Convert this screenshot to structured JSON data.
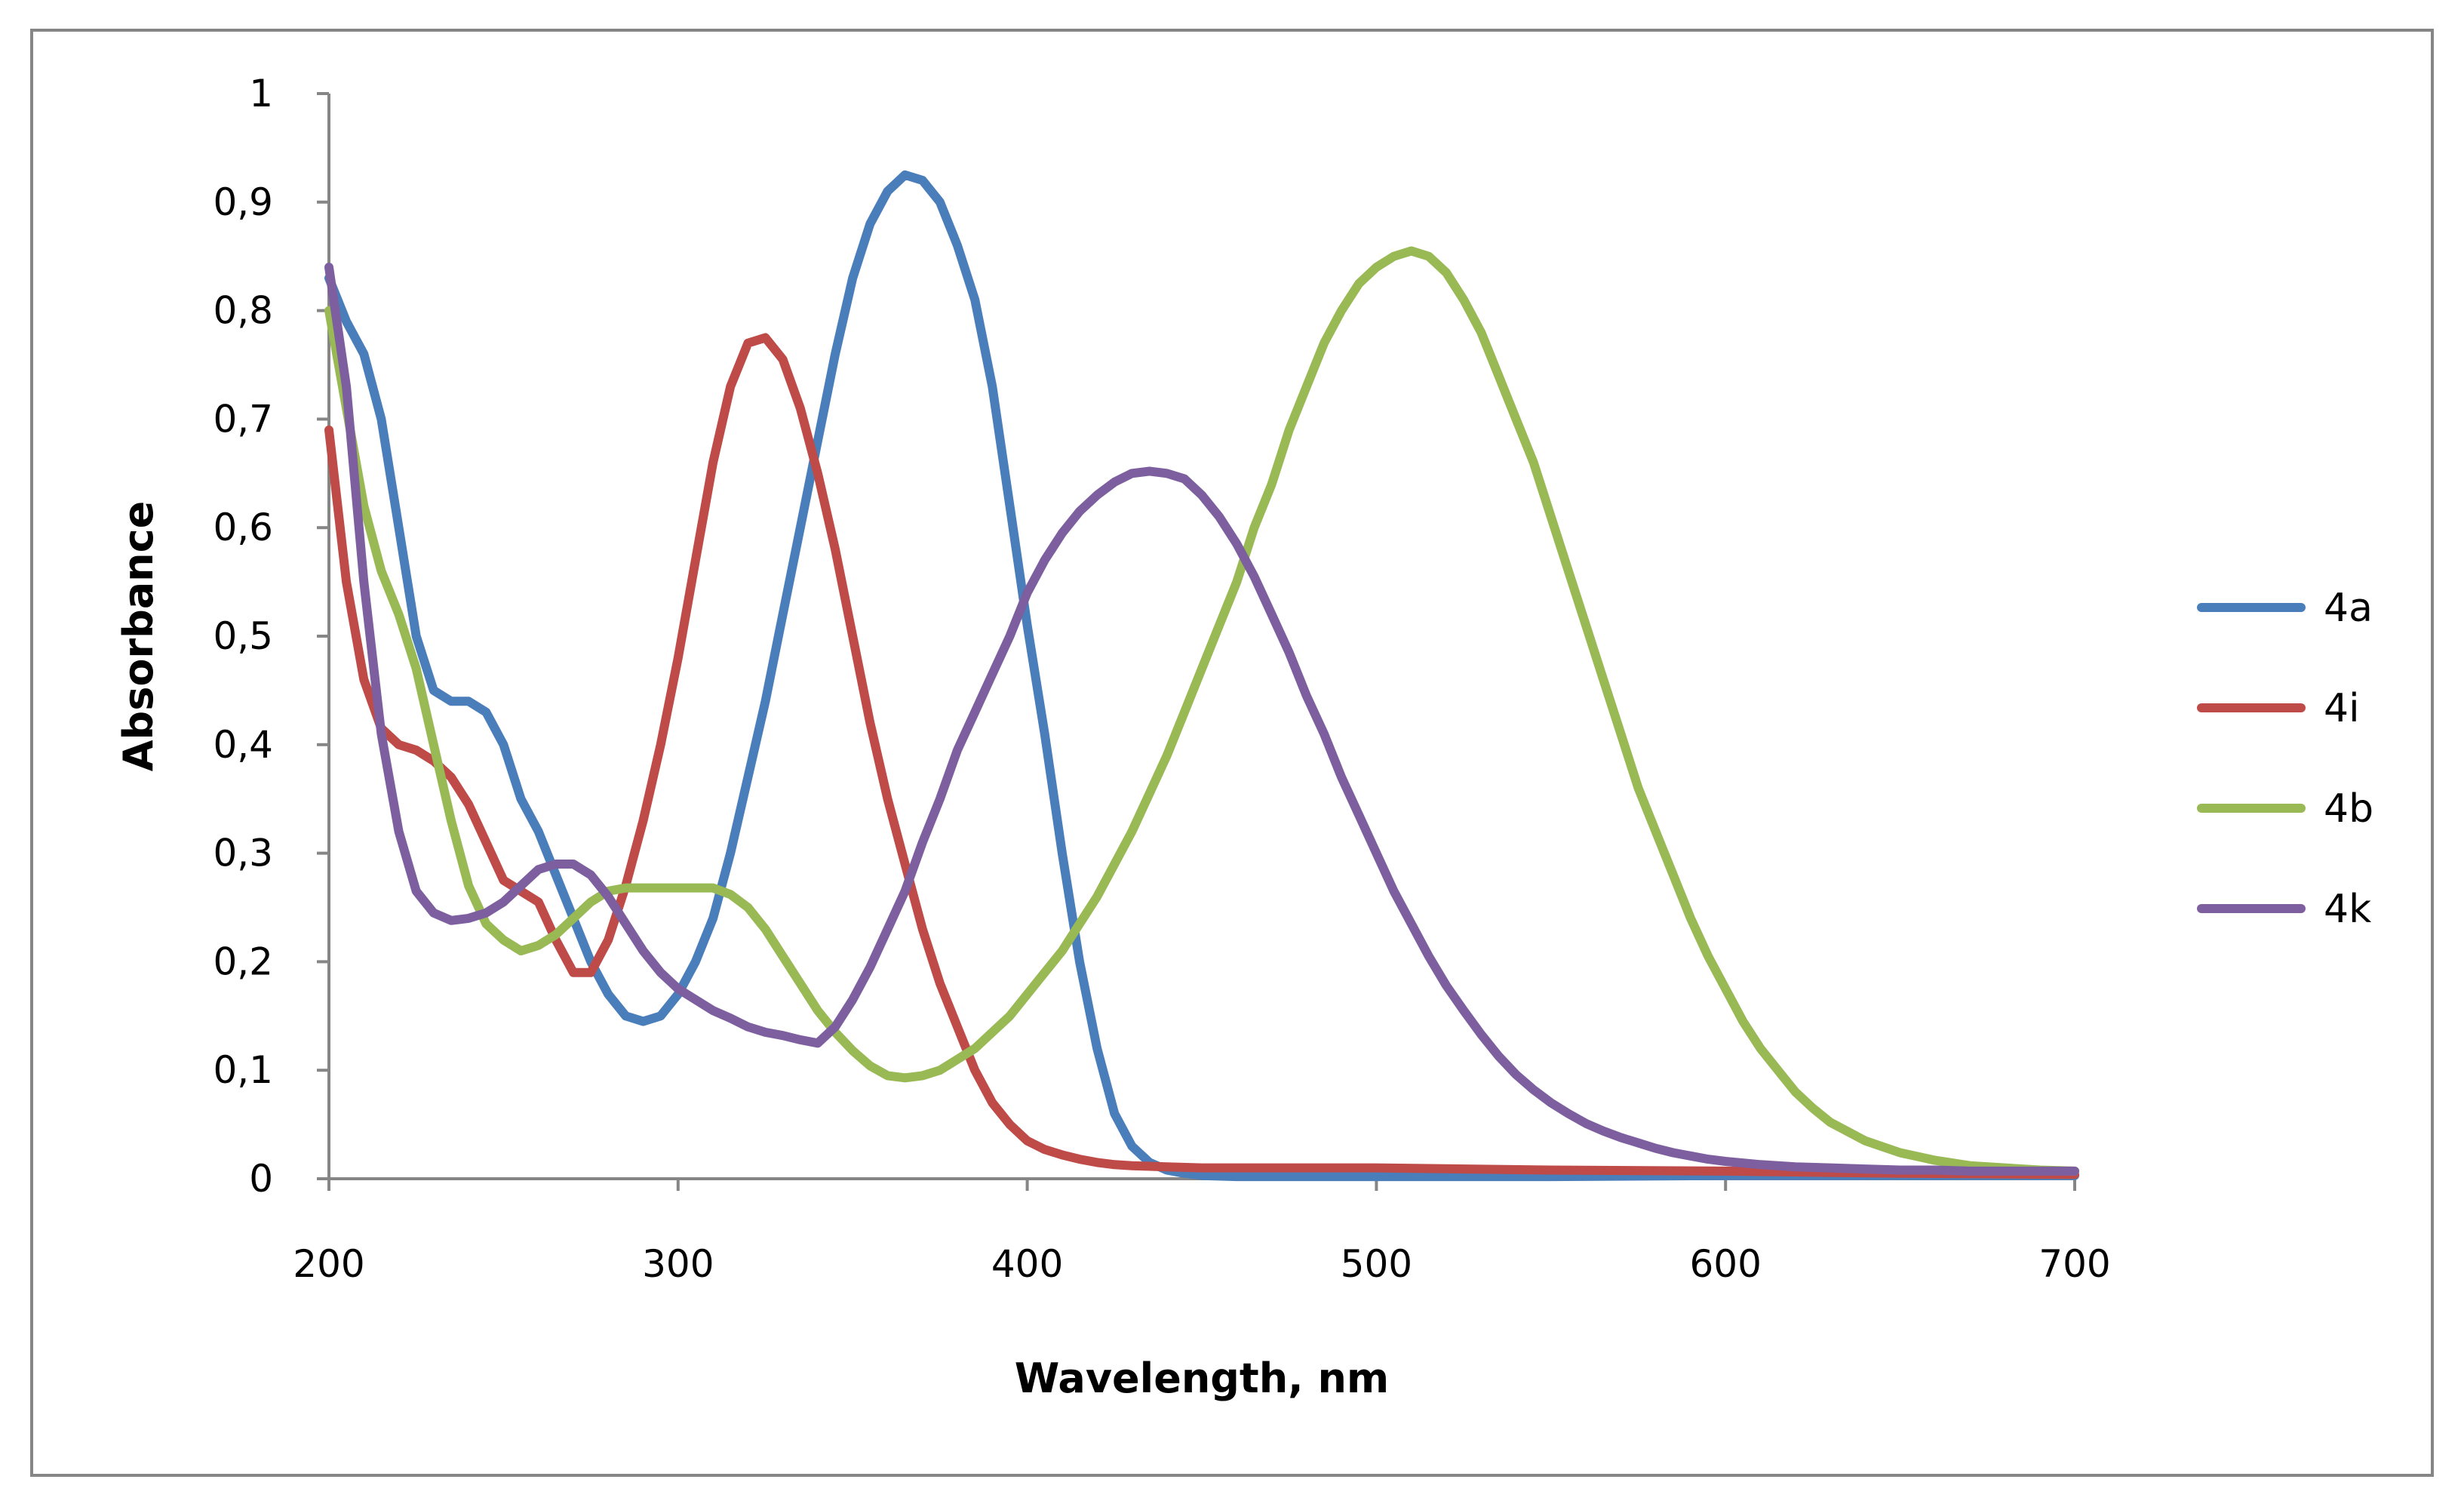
{
  "chart_data": {
    "type": "line",
    "title": "",
    "xlabel": "Wavelength, nm",
    "ylabel": "Absorbance",
    "xlim": [
      200,
      700
    ],
    "ylim": [
      0,
      1
    ],
    "xticks": [
      200,
      300,
      400,
      500,
      600,
      700
    ],
    "xtick_labels": [
      "200",
      "300",
      "400",
      "500",
      "600",
      "700"
    ],
    "yticks": [
      0,
      0.1,
      0.2,
      0.3,
      0.4,
      0.5,
      0.6,
      0.7,
      0.8,
      0.9,
      1
    ],
    "ytick_labels": [
      "0",
      "0,1",
      "0,2",
      "0,3",
      "0,4",
      "0,5",
      "0,6",
      "0,7",
      "0,8",
      "0,9",
      "1"
    ],
    "grid": false,
    "legend_position": "right",
    "series": [
      {
        "name": "4a",
        "color": "#4a7ebb",
        "x": [
          200,
          205,
          210,
          215,
          220,
          225,
          230,
          235,
          240,
          245,
          250,
          255,
          260,
          265,
          270,
          275,
          280,
          285,
          290,
          295,
          300,
          305,
          310,
          315,
          320,
          325,
          330,
          335,
          340,
          345,
          350,
          355,
          360,
          365,
          370,
          375,
          380,
          385,
          390,
          395,
          400,
          405,
          410,
          415,
          420,
          425,
          430,
          435,
          440,
          445,
          450,
          460,
          480,
          500,
          550,
          600,
          650,
          700
        ],
        "y": [
          0.83,
          0.79,
          0.76,
          0.7,
          0.6,
          0.5,
          0.45,
          0.44,
          0.44,
          0.43,
          0.4,
          0.35,
          0.32,
          0.28,
          0.24,
          0.2,
          0.17,
          0.15,
          0.145,
          0.15,
          0.17,
          0.2,
          0.24,
          0.3,
          0.37,
          0.44,
          0.52,
          0.6,
          0.68,
          0.76,
          0.83,
          0.88,
          0.91,
          0.925,
          0.92,
          0.9,
          0.86,
          0.81,
          0.73,
          0.62,
          0.51,
          0.41,
          0.3,
          0.2,
          0.12,
          0.06,
          0.03,
          0.015,
          0.008,
          0.005,
          0.003,
          0.002,
          0.002,
          0.002,
          0.002,
          0.003,
          0.003,
          0.003
        ]
      },
      {
        "name": "4i",
        "color": "#be4b48",
        "x": [
          200,
          205,
          210,
          215,
          220,
          225,
          230,
          235,
          240,
          245,
          250,
          255,
          260,
          265,
          270,
          275,
          280,
          285,
          290,
          295,
          300,
          305,
          310,
          315,
          320,
          325,
          330,
          335,
          340,
          345,
          350,
          355,
          360,
          365,
          370,
          375,
          380,
          385,
          390,
          395,
          400,
          405,
          410,
          415,
          420,
          425,
          430,
          440,
          450,
          500,
          550,
          600,
          650,
          700
        ],
        "y": [
          0.69,
          0.55,
          0.46,
          0.415,
          0.4,
          0.395,
          0.385,
          0.37,
          0.345,
          0.31,
          0.275,
          0.265,
          0.255,
          0.22,
          0.19,
          0.19,
          0.22,
          0.27,
          0.33,
          0.4,
          0.48,
          0.57,
          0.66,
          0.73,
          0.77,
          0.775,
          0.755,
          0.71,
          0.65,
          0.58,
          0.5,
          0.42,
          0.35,
          0.29,
          0.23,
          0.18,
          0.14,
          0.1,
          0.07,
          0.05,
          0.035,
          0.027,
          0.022,
          0.018,
          0.015,
          0.013,
          0.012,
          0.011,
          0.01,
          0.01,
          0.008,
          0.007,
          0.005,
          0.004
        ]
      },
      {
        "name": "4b",
        "color": "#98b954",
        "x": [
          200,
          205,
          210,
          215,
          220,
          225,
          230,
          235,
          240,
          245,
          250,
          255,
          260,
          265,
          270,
          275,
          280,
          285,
          290,
          295,
          300,
          305,
          310,
          315,
          320,
          325,
          330,
          335,
          340,
          345,
          350,
          355,
          360,
          365,
          370,
          375,
          380,
          385,
          390,
          395,
          400,
          405,
          410,
          415,
          420,
          425,
          430,
          435,
          440,
          445,
          450,
          455,
          460,
          465,
          470,
          475,
          480,
          485,
          490,
          495,
          500,
          505,
          510,
          515,
          520,
          525,
          530,
          535,
          540,
          545,
          550,
          555,
          560,
          565,
          570,
          575,
          580,
          585,
          590,
          595,
          600,
          605,
          610,
          615,
          620,
          625,
          630,
          640,
          650,
          660,
          670,
          680,
          690,
          700
        ],
        "y": [
          0.8,
          0.71,
          0.62,
          0.56,
          0.52,
          0.47,
          0.4,
          0.33,
          0.27,
          0.235,
          0.22,
          0.21,
          0.215,
          0.225,
          0.24,
          0.255,
          0.265,
          0.268,
          0.268,
          0.268,
          0.268,
          0.268,
          0.268,
          0.262,
          0.25,
          0.23,
          0.205,
          0.18,
          0.155,
          0.135,
          0.118,
          0.104,
          0.095,
          0.093,
          0.095,
          0.1,
          0.11,
          0.12,
          0.135,
          0.15,
          0.17,
          0.19,
          0.21,
          0.235,
          0.26,
          0.29,
          0.32,
          0.355,
          0.39,
          0.43,
          0.47,
          0.51,
          0.55,
          0.6,
          0.64,
          0.69,
          0.73,
          0.77,
          0.8,
          0.825,
          0.84,
          0.85,
          0.855,
          0.85,
          0.835,
          0.81,
          0.78,
          0.74,
          0.7,
          0.66,
          0.61,
          0.56,
          0.51,
          0.46,
          0.41,
          0.36,
          0.32,
          0.28,
          0.24,
          0.205,
          0.175,
          0.145,
          0.12,
          0.1,
          0.08,
          0.065,
          0.052,
          0.035,
          0.024,
          0.017,
          0.012,
          0.01,
          0.008,
          0.007
        ]
      },
      {
        "name": "4k",
        "color": "#7d5fa0",
        "x": [
          200,
          205,
          210,
          215,
          220,
          225,
          230,
          235,
          240,
          245,
          250,
          255,
          260,
          265,
          270,
          275,
          280,
          285,
          290,
          295,
          300,
          305,
          310,
          315,
          320,
          325,
          330,
          335,
          340,
          345,
          350,
          355,
          360,
          365,
          370,
          375,
          380,
          385,
          390,
          395,
          400,
          405,
          410,
          415,
          420,
          425,
          430,
          435,
          440,
          445,
          450,
          455,
          460,
          465,
          470,
          475,
          480,
          485,
          490,
          495,
          500,
          505,
          510,
          515,
          520,
          525,
          530,
          535,
          540,
          545,
          550,
          555,
          560,
          565,
          570,
          575,
          580,
          585,
          590,
          595,
          600,
          610,
          620,
          630,
          640,
          650,
          660,
          670,
          680,
          690,
          700
        ],
        "y": [
          0.84,
          0.73,
          0.55,
          0.41,
          0.32,
          0.265,
          0.245,
          0.238,
          0.24,
          0.245,
          0.255,
          0.27,
          0.285,
          0.29,
          0.29,
          0.28,
          0.26,
          0.235,
          0.21,
          0.19,
          0.175,
          0.165,
          0.155,
          0.148,
          0.14,
          0.135,
          0.132,
          0.128,
          0.125,
          0.14,
          0.165,
          0.195,
          0.23,
          0.265,
          0.31,
          0.35,
          0.395,
          0.43,
          0.465,
          0.5,
          0.54,
          0.57,
          0.595,
          0.615,
          0.63,
          0.642,
          0.65,
          0.652,
          0.65,
          0.645,
          0.63,
          0.61,
          0.585,
          0.555,
          0.52,
          0.485,
          0.445,
          0.41,
          0.37,
          0.335,
          0.3,
          0.265,
          0.235,
          0.205,
          0.178,
          0.155,
          0.133,
          0.113,
          0.096,
          0.082,
          0.07,
          0.06,
          0.051,
          0.044,
          0.038,
          0.033,
          0.028,
          0.024,
          0.021,
          0.018,
          0.016,
          0.013,
          0.011,
          0.01,
          0.009,
          0.008,
          0.008,
          0.007,
          0.007,
          0.007,
          0.007
        ]
      }
    ]
  }
}
